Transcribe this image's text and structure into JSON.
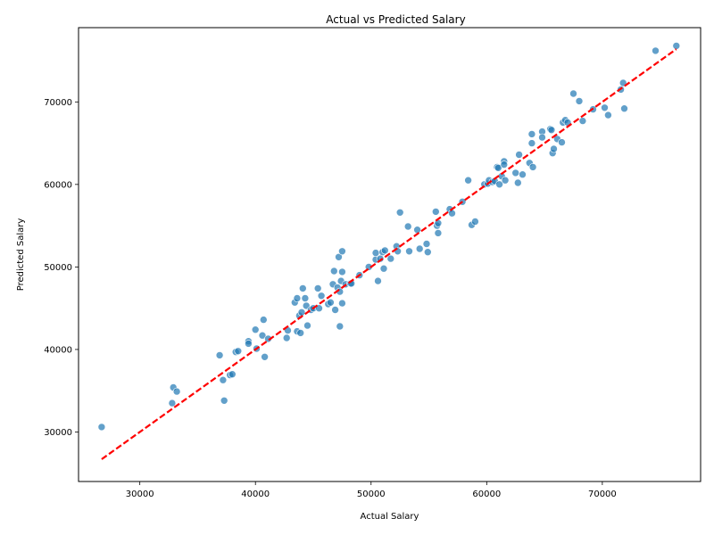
{
  "chart_data": {
    "type": "scatter",
    "title": "Actual vs Predicted Salary",
    "xlabel": "Actual Salary",
    "ylabel": "Predicted Salary",
    "xlim": [
      24700,
      78500
    ],
    "ylim": [
      24000,
      79000
    ],
    "xticks": [
      30000,
      40000,
      50000,
      60000,
      70000
    ],
    "yticks": [
      30000,
      40000,
      50000,
      60000,
      70000
    ],
    "xtick_labels": [
      "30000",
      "40000",
      "50000",
      "60000",
      "70000"
    ],
    "ytick_labels": [
      "30000",
      "40000",
      "50000",
      "60000",
      "70000"
    ],
    "grid": false,
    "point_color": "#1f77b4",
    "point_opacity": 0.7,
    "line_color": "#ff0000",
    "reference_line": {
      "style": "dashed",
      "x": [
        26700,
        76400
      ],
      "y": [
        26700,
        76400
      ]
    },
    "points": [
      [
        26700,
        30600
      ],
      [
        32800,
        33500
      ],
      [
        32900,
        35400
      ],
      [
        33200,
        34900
      ],
      [
        36900,
        39300
      ],
      [
        37200,
        36300
      ],
      [
        37300,
        33800
      ],
      [
        37800,
        36900
      ],
      [
        38000,
        37000
      ],
      [
        38300,
        39700
      ],
      [
        38500,
        39800
      ],
      [
        39400,
        41000
      ],
      [
        39400,
        40700
      ],
      [
        40000,
        42400
      ],
      [
        40100,
        40100
      ],
      [
        40600,
        41700
      ],
      [
        40700,
        43600
      ],
      [
        40800,
        39100
      ],
      [
        41100,
        41300
      ],
      [
        42700,
        41400
      ],
      [
        42800,
        42300
      ],
      [
        43400,
        45700
      ],
      [
        43600,
        46200
      ],
      [
        43600,
        42200
      ],
      [
        43800,
        44100
      ],
      [
        43900,
        42000
      ],
      [
        44000,
        44500
      ],
      [
        44100,
        47400
      ],
      [
        44300,
        46200
      ],
      [
        44400,
        45300
      ],
      [
        44500,
        42900
      ],
      [
        44800,
        44800
      ],
      [
        45000,
        45000
      ],
      [
        45400,
        47400
      ],
      [
        45500,
        45000
      ],
      [
        45700,
        46500
      ],
      [
        46300,
        45500
      ],
      [
        46500,
        45700
      ],
      [
        46700,
        47900
      ],
      [
        46800,
        49500
      ],
      [
        46900,
        44800
      ],
      [
        47100,
        47500
      ],
      [
        47200,
        51200
      ],
      [
        47300,
        42800
      ],
      [
        47300,
        47000
      ],
      [
        47400,
        48300
      ],
      [
        47500,
        49400
      ],
      [
        47500,
        51900
      ],
      [
        47500,
        45600
      ],
      [
        47800,
        47900
      ],
      [
        48200,
        48000
      ],
      [
        48300,
        48000
      ],
      [
        49000,
        49000
      ],
      [
        49800,
        50000
      ],
      [
        50400,
        50900
      ],
      [
        50400,
        51700
      ],
      [
        50600,
        48300
      ],
      [
        50800,
        51000
      ],
      [
        51000,
        51800
      ],
      [
        51100,
        49800
      ],
      [
        51200,
        52000
      ],
      [
        51700,
        51000
      ],
      [
        52200,
        52500
      ],
      [
        52300,
        51900
      ],
      [
        52500,
        56600
      ],
      [
        53200,
        54900
      ],
      [
        53300,
        51900
      ],
      [
        54000,
        54500
      ],
      [
        54200,
        52200
      ],
      [
        54800,
        52800
      ],
      [
        54900,
        51800
      ],
      [
        55600,
        56700
      ],
      [
        55700,
        55000
      ],
      [
        55800,
        55300
      ],
      [
        55800,
        54100
      ],
      [
        56800,
        57000
      ],
      [
        57000,
        56500
      ],
      [
        57900,
        57900
      ],
      [
        58400,
        60500
      ],
      [
        58700,
        55100
      ],
      [
        59000,
        55500
      ],
      [
        59800,
        60000
      ],
      [
        60100,
        60100
      ],
      [
        60200,
        60500
      ],
      [
        60500,
        60300
      ],
      [
        60700,
        60400
      ],
      [
        60900,
        62100
      ],
      [
        61000,
        62000
      ],
      [
        61100,
        60000
      ],
      [
        61300,
        61000
      ],
      [
        61500,
        62800
      ],
      [
        61500,
        62400
      ],
      [
        61600,
        60500
      ],
      [
        62500,
        61400
      ],
      [
        62700,
        60200
      ],
      [
        62800,
        63600
      ],
      [
        63100,
        61200
      ],
      [
        63700,
        62600
      ],
      [
        63900,
        66100
      ],
      [
        63900,
        65000
      ],
      [
        64000,
        62100
      ],
      [
        64800,
        66400
      ],
      [
        64800,
        65700
      ],
      [
        65500,
        66700
      ],
      [
        65600,
        66600
      ],
      [
        65700,
        63800
      ],
      [
        65800,
        64300
      ],
      [
        66100,
        65500
      ],
      [
        66500,
        65100
      ],
      [
        66600,
        67500
      ],
      [
        66800,
        67800
      ],
      [
        67000,
        67500
      ],
      [
        67500,
        71000
      ],
      [
        68000,
        70100
      ],
      [
        68300,
        67700
      ],
      [
        69200,
        69100
      ],
      [
        70200,
        69300
      ],
      [
        70500,
        68400
      ],
      [
        71600,
        71500
      ],
      [
        71800,
        72300
      ],
      [
        71900,
        69200
      ],
      [
        74600,
        76200
      ],
      [
        76400,
        76800
      ]
    ]
  }
}
